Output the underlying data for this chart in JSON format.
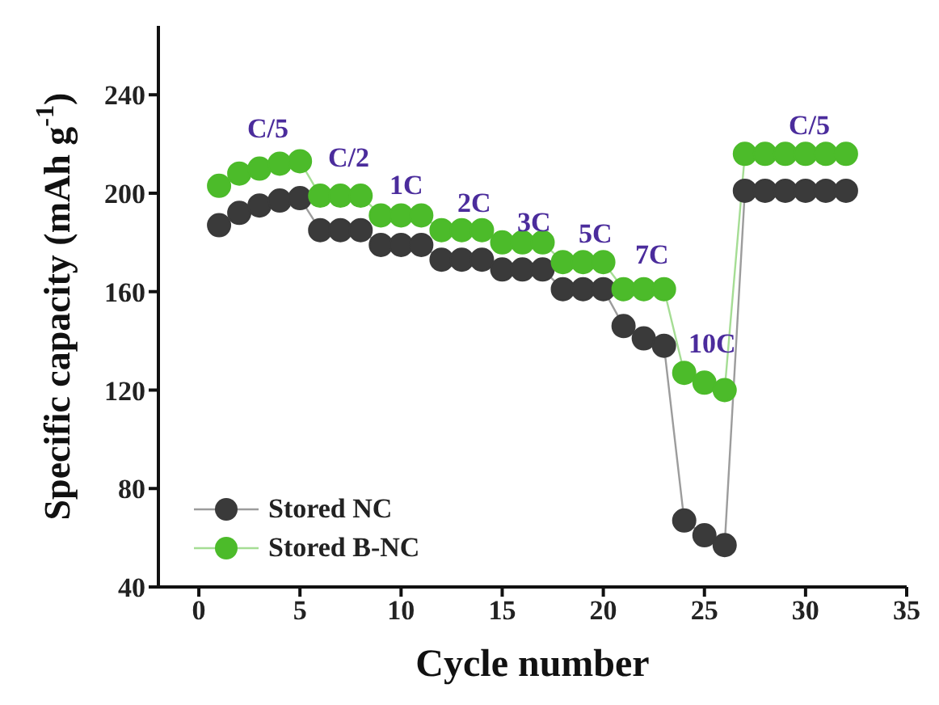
{
  "chart_data": {
    "type": "line",
    "xlabel": "Cycle number",
    "ylabel": "Specific capacity (mAh g$^{-1}$)",
    "x": [
      1,
      2,
      3,
      4,
      5,
      6,
      7,
      8,
      9,
      10,
      11,
      12,
      13,
      14,
      15,
      16,
      17,
      18,
      19,
      20,
      21,
      22,
      23,
      24,
      25,
      26,
      27,
      28,
      29,
      30,
      31,
      32
    ],
    "series": [
      {
        "name": "Stored NC",
        "color": "#3a3a3a",
        "values": [
          187,
          192,
          195,
          197,
          198,
          185,
          185,
          185,
          179,
          179,
          179,
          173,
          173,
          173,
          169,
          169,
          169,
          161,
          161,
          161,
          146,
          141,
          138,
          67,
          61,
          57,
          201,
          201,
          201,
          201,
          201,
          201
        ]
      },
      {
        "name": "Stored B-NC",
        "color": "#4cbb2a",
        "values": [
          203,
          208,
          210,
          212,
          213,
          199,
          199,
          199,
          191,
          191,
          191,
          185,
          185,
          185,
          180,
          180,
          180,
          172,
          172,
          172,
          161,
          161,
          161,
          127,
          123,
          120,
          216,
          216,
          216,
          216,
          216,
          216
        ]
      }
    ],
    "xlim": [
      -2,
      35
    ],
    "xticks": [
      0,
      5,
      10,
      15,
      20,
      25,
      30,
      35
    ],
    "ylim": [
      40,
      268
    ],
    "yticks": [
      40,
      80,
      120,
      160,
      200,
      240
    ],
    "grid": false,
    "legend": "bottom left",
    "marker": "circle",
    "line_style": "solid",
    "annotations": [
      "C/5",
      "C/2",
      "1C",
      "2C",
      "3C",
      "5C",
      "7C",
      "10C",
      "C/5"
    ]
  }
}
